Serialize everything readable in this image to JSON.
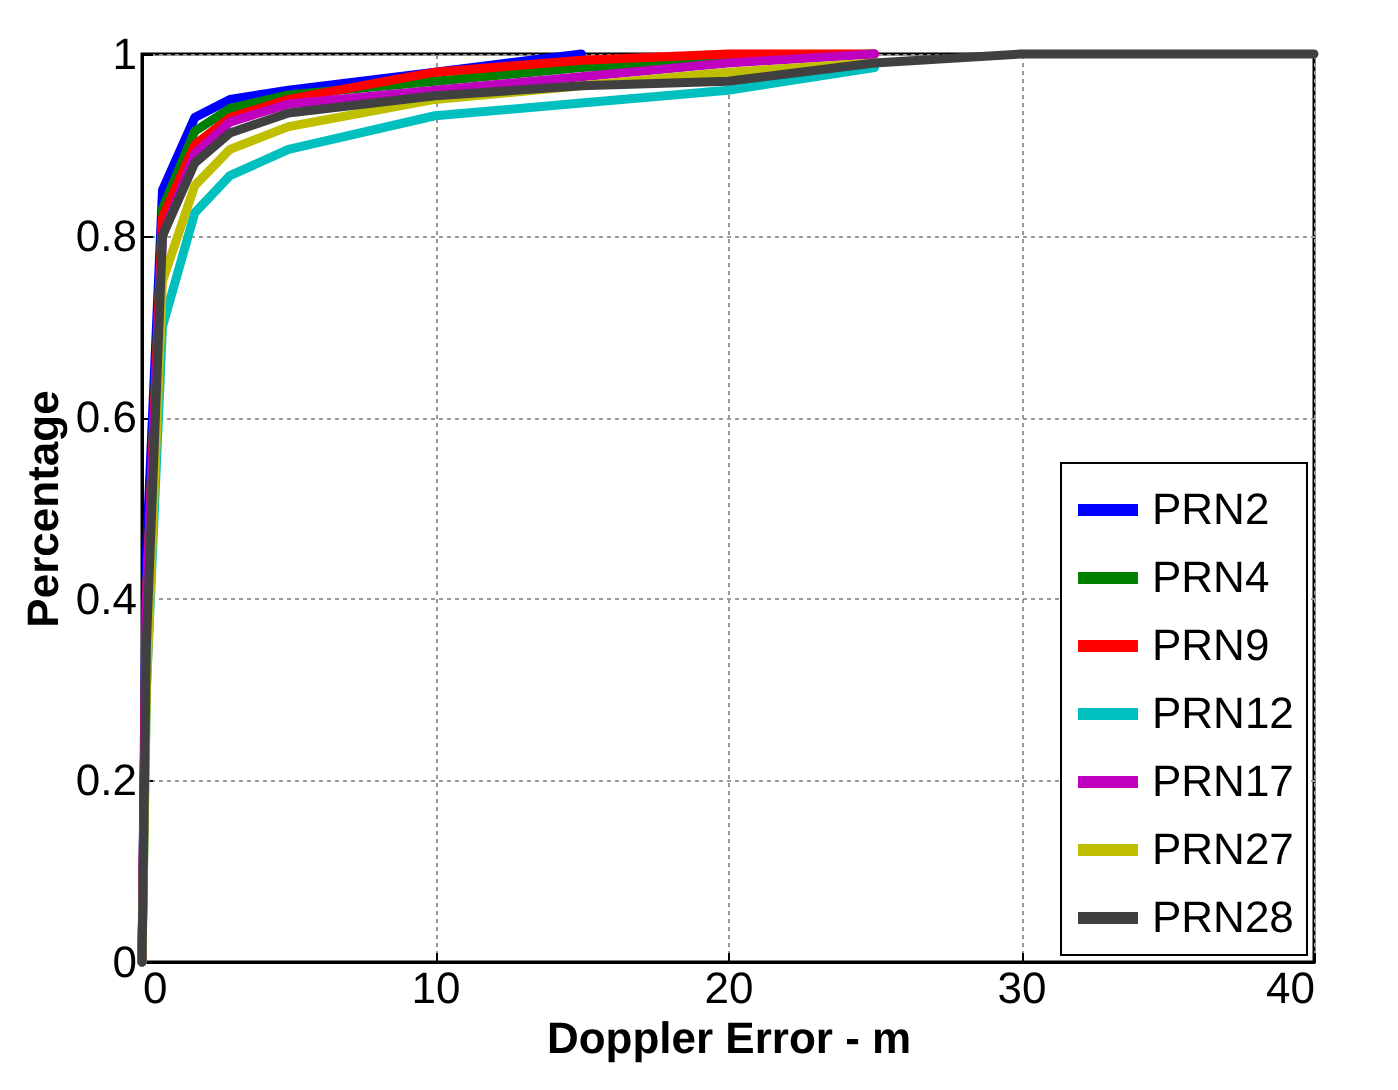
{
  "chart_data": {
    "type": "line",
    "xlabel": "Doppler Error - m",
    "ylabel": "Percentage",
    "x": [
      0,
      0.15,
      0.7,
      1.8,
      3,
      5,
      10,
      15,
      20,
      25,
      30,
      40
    ],
    "series": [
      {
        "name": "PRN2",
        "color": "#0000ff",
        "values": [
          0,
          0.45,
          0.85,
          0.93,
          0.95,
          0.96,
          0.98,
          1,
          null,
          null,
          null,
          null
        ]
      },
      {
        "name": "PRN4",
        "color": "#008000",
        "values": [
          0,
          0.4,
          0.83,
          0.915,
          0.94,
          0.955,
          0.97,
          0.985,
          0.995,
          1,
          null,
          null
        ]
      },
      {
        "name": "PRN9",
        "color": "#ff0000",
        "values": [
          0,
          0.4,
          0.82,
          0.9,
          0.93,
          0.95,
          0.98,
          0.993,
          1,
          1,
          null,
          null
        ]
      },
      {
        "name": "PRN12",
        "color": "#00bfbf",
        "values": [
          0,
          0.3,
          0.7,
          0.825,
          0.866,
          0.895,
          0.932,
          0.946,
          0.96,
          0.985,
          null,
          null
        ]
      },
      {
        "name": "PRN17",
        "color": "#bf00bf",
        "values": [
          0,
          0.4,
          0.8,
          0.89,
          0.925,
          0.945,
          0.96,
          0.975,
          0.99,
          1,
          null,
          null
        ]
      },
      {
        "name": "PRN27",
        "color": "#bfbf00",
        "values": [
          0,
          0.3,
          0.75,
          0.855,
          0.895,
          0.92,
          0.95,
          0.965,
          0.98,
          0.99,
          null,
          null
        ]
      },
      {
        "name": "PRN28",
        "color": "#404040",
        "values": [
          0,
          0.35,
          0.8,
          0.88,
          0.913,
          0.935,
          0.954,
          0.965,
          0.97,
          0.99,
          1,
          1
        ]
      }
    ],
    "xlim": [
      0,
      40
    ],
    "xticks": [
      0,
      10,
      20,
      30,
      40
    ],
    "ylim": [
      0,
      1
    ],
    "yticks": [
      0,
      0.2,
      0.4,
      0.6,
      0.8,
      1
    ],
    "grid": true,
    "legend": "bottom right",
    "line_style": "solid",
    "marker": "none"
  }
}
